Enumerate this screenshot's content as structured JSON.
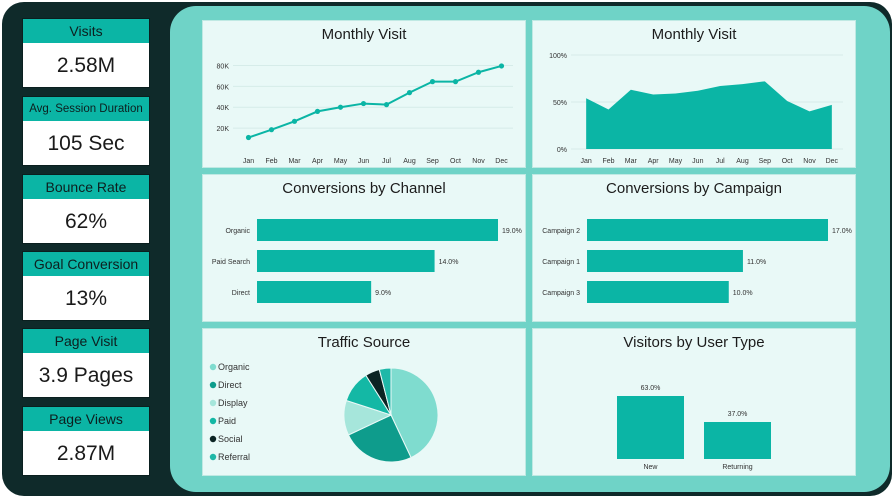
{
  "kpis": [
    {
      "label": "Visits",
      "value": "2.58M"
    },
    {
      "label": "Avg. Session Duration",
      "value": "105 Sec"
    },
    {
      "label": "Bounce Rate",
      "value": "62%"
    },
    {
      "label": "Goal Conversion",
      "value": "13%"
    },
    {
      "label": "Page Visit",
      "value": "3.9 Pages"
    },
    {
      "label": "Page Views",
      "value": "2.87M"
    }
  ],
  "colors": {
    "accent": "#0bb5a5",
    "dark": "#0f2a2a",
    "panel_bg": "#e9f9f7",
    "frame_bg": "#6fd3c7"
  },
  "chart_data": [
    {
      "type": "line",
      "title": "Monthly Visit",
      "categories": [
        "Jan",
        "Feb",
        "Mar",
        "Apr",
        "May",
        "Jun",
        "Jul",
        "Aug",
        "Sep",
        "Oct",
        "Nov",
        "Dec"
      ],
      "values": [
        11000,
        18500,
        26500,
        36000,
        40000,
        43500,
        42500,
        54000,
        64500,
        64500,
        73500,
        79500
      ],
      "ylim": [
        0,
        90000
      ],
      "yticks": [
        20000,
        40000,
        60000,
        80000
      ],
      "ytick_labels": [
        "20K",
        "40K",
        "60K",
        "80K"
      ],
      "grid": true
    },
    {
      "type": "area",
      "title": "Monthly Visit",
      "categories": [
        "Jan",
        "Feb",
        "Mar",
        "Apr",
        "May",
        "Jun",
        "Jul",
        "Aug",
        "Sep",
        "Oct",
        "Nov",
        "Dec"
      ],
      "values": [
        54,
        42,
        63,
        58,
        59,
        62,
        67,
        69,
        72,
        51,
        40,
        47
      ],
      "ylim": [
        0,
        100
      ],
      "yticks": [
        0,
        50,
        100
      ],
      "ytick_labels": [
        "0%",
        "50%",
        "100%"
      ],
      "grid": true
    },
    {
      "type": "bar",
      "orientation": "horizontal",
      "title": "Conversions by Channel",
      "categories": [
        "Organic",
        "Paid Search",
        "Direct"
      ],
      "values": [
        19.0,
        14.0,
        9.0
      ],
      "labels": [
        "19.0%",
        "14.0%",
        "9.0%"
      ]
    },
    {
      "type": "bar",
      "orientation": "horizontal",
      "title": "Conversions by Campaign",
      "categories": [
        "Campaign 2",
        "Campaign 1",
        "Campaign 3"
      ],
      "values": [
        17.0,
        11.0,
        10.0
      ],
      "labels": [
        "17.0%",
        "11.0%",
        "10.0%"
      ]
    },
    {
      "type": "pie",
      "title": "Traffic Source",
      "categories": [
        "Organic",
        "Direct",
        "Display",
        "Paid",
        "Social",
        "Referral"
      ],
      "values": [
        43,
        25,
        12,
        11,
        5,
        4
      ],
      "colors": [
        "#7fdccf",
        "#0e9c8c",
        "#a6e6db",
        "#14b8a5",
        "#0b2424",
        "#1fb8a8"
      ],
      "legend": "left"
    },
    {
      "type": "bar",
      "title": "Visitors by User Type",
      "categories": [
        "New",
        "Returning"
      ],
      "values": [
        63.0,
        37.0
      ],
      "labels": [
        "63.0%",
        "37.0%"
      ]
    }
  ]
}
